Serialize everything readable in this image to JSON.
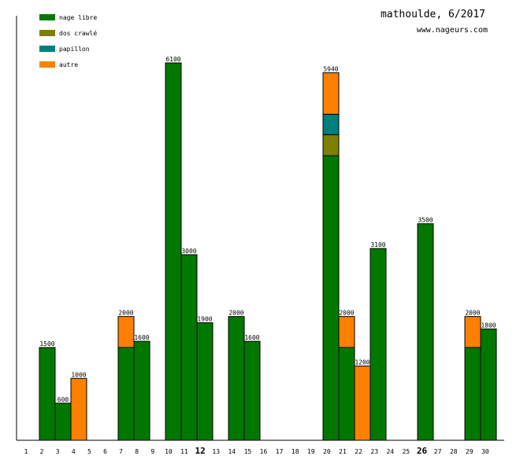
{
  "chart_data": {
    "type": "bar",
    "stacked": true,
    "title": "mathoulde, 6/2017",
    "subtitle": "www.nageurs.com",
    "legend_position": "top-left",
    "grid": false,
    "xlabel": "",
    "ylabel": "",
    "ylim": [
      0,
      6100
    ],
    "categories": [
      "1",
      "2",
      "3",
      "4",
      "5",
      "6",
      "7",
      "8",
      "9",
      "10",
      "11",
      "12",
      "13",
      "14",
      "15",
      "16",
      "17",
      "18",
      "19",
      "20",
      "21",
      "22",
      "23",
      "24",
      "25",
      "26",
      "27",
      "28",
      "29",
      "30"
    ],
    "highlighted_categories": [
      "12",
      "26"
    ],
    "series": [
      {
        "name": "nage libre",
        "color": "#007800",
        "values": [
          0,
          1500,
          600,
          0,
          0,
          0,
          1500,
          1600,
          0,
          6100,
          3000,
          1900,
          0,
          2000,
          1600,
          0,
          0,
          0,
          0,
          4600,
          1500,
          0,
          3100,
          0,
          0,
          3500,
          0,
          0,
          1500,
          1800
        ]
      },
      {
        "name": "dos crawlé",
        "color": "#7f7f00",
        "values": [
          0,
          0,
          0,
          0,
          0,
          0,
          0,
          0,
          0,
          0,
          0,
          0,
          0,
          0,
          0,
          0,
          0,
          0,
          0,
          340,
          0,
          0,
          0,
          0,
          0,
          0,
          0,
          0,
          0,
          0
        ]
      },
      {
        "name": "papillon",
        "color": "#007f7f",
        "values": [
          0,
          0,
          0,
          0,
          0,
          0,
          0,
          0,
          0,
          0,
          0,
          0,
          0,
          0,
          0,
          0,
          0,
          0,
          0,
          330,
          0,
          0,
          0,
          0,
          0,
          0,
          0,
          0,
          0,
          0
        ]
      },
      {
        "name": "autre",
        "color": "#ff7f00",
        "values": [
          0,
          0,
          0,
          1000,
          0,
          0,
          500,
          0,
          0,
          0,
          0,
          0,
          0,
          0,
          0,
          0,
          0,
          0,
          0,
          670,
          500,
          1200,
          0,
          0,
          0,
          0,
          0,
          0,
          500,
          0
        ]
      }
    ],
    "totals": [
      null,
      "1500",
      "600",
      "1000",
      null,
      null,
      "2000",
      "1600",
      null,
      "6100",
      "3000",
      "1900",
      null,
      "2000",
      "1600",
      null,
      null,
      null,
      null,
      "5940",
      "2000",
      "1200",
      "3100",
      null,
      null,
      "3500",
      null,
      null,
      "2000",
      "1800"
    ]
  }
}
